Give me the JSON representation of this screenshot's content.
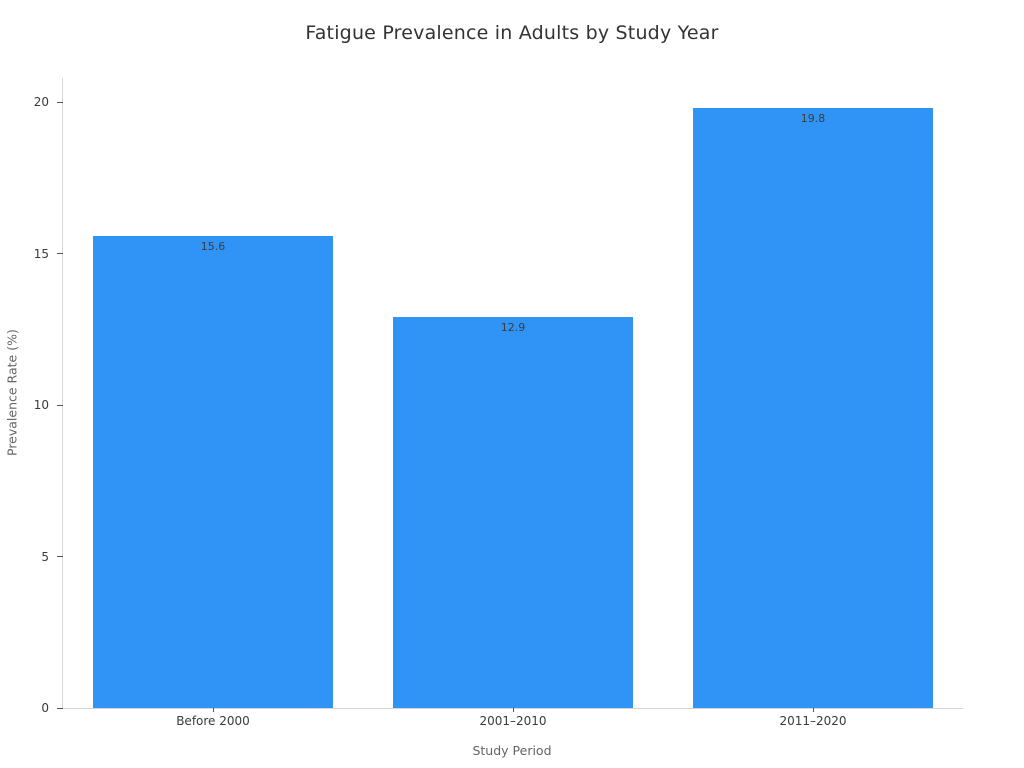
{
  "chart_data": {
    "type": "bar",
    "title": "Fatigue Prevalence in Adults by Study Year",
    "xlabel": "Study Period",
    "ylabel": "Prevalence Rate (%)",
    "categories": [
      "Before 2000",
      "2001–2010",
      "2011–2020"
    ],
    "values": [
      15.6,
      12.9,
      19.8
    ],
    "value_labels": [
      "15.6",
      "12.9",
      "19.8"
    ],
    "yticks": [
      0,
      5,
      10,
      15,
      20
    ],
    "ylim": [
      0,
      20.8
    ],
    "bar_width_fraction": 0.8,
    "grid": false,
    "legend": "none",
    "bar_color": "#2f94f5",
    "axis_line_color": "#d6d6d6",
    "tick_color": "#555555",
    "tick_label_color": "#3b3b3b",
    "title_color": "#333333",
    "axis_label_color": "#656565",
    "value_label_color": "#3d3d3d"
  }
}
